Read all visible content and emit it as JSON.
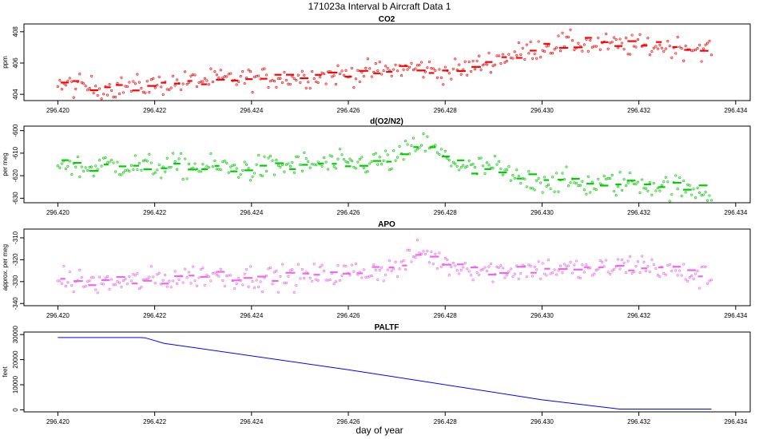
{
  "figure": {
    "title": "171023a   Interval b Aircraft Data 1",
    "xlabel": "day of year"
  },
  "chart_data": [
    {
      "type": "scatter",
      "title": "CO2",
      "ylabel": "ppm",
      "color": "#ff0000",
      "xlim": [
        296.4193,
        296.4343
      ],
      "ylim": [
        403.6,
        408.5
      ],
      "xticks": [
        "296.420",
        "296.422",
        "296.424",
        "296.426",
        "296.428",
        "296.430",
        "296.432",
        "296.434"
      ],
      "yticks": [
        "404",
        "406",
        "408"
      ],
      "trend_x": [
        296.42,
        296.421,
        296.422,
        296.423,
        296.424,
        296.425,
        296.426,
        296.427,
        296.4275,
        296.428,
        296.4285,
        296.429,
        296.4295,
        296.43,
        296.4305,
        296.431,
        296.432,
        296.433,
        296.4335
      ],
      "trend_y": [
        404.6,
        404.4,
        404.6,
        404.9,
        405.0,
        405.1,
        405.3,
        405.6,
        405.7,
        405.4,
        405.7,
        406.2,
        406.6,
        407.0,
        407.3,
        407.2,
        407.1,
        407.0,
        406.9
      ],
      "noise": 0.35
    },
    {
      "type": "scatter",
      "title": "d(O2/N2)",
      "ylabel": "per meg",
      "color": "#00cc00",
      "xlim": [
        296.4193,
        296.4343
      ],
      "ylim": [
        -632,
        -598
      ],
      "xticks": [
        "296.420",
        "296.422",
        "296.424",
        "296.426",
        "296.428",
        "296.430",
        "296.432",
        "296.434"
      ],
      "yticks": [
        "-630",
        "-620",
        "-610",
        "-600"
      ],
      "trend_x": [
        296.42,
        296.4205,
        296.421,
        296.422,
        296.423,
        296.424,
        296.425,
        296.426,
        296.427,
        296.4275,
        296.428,
        296.4285,
        296.429,
        296.4295,
        296.43,
        296.431,
        296.432,
        296.433,
        296.4335
      ],
      "trend_y": [
        -613,
        -617,
        -615,
        -616,
        -616,
        -617,
        -615,
        -615,
        -613,
        -605,
        -612,
        -617,
        -616,
        -622,
        -622,
        -624,
        -623,
        -626,
        -627
      ],
      "noise": 2.8
    },
    {
      "type": "scatter",
      "title": "APO",
      "ylabel": "approx. per meg",
      "color": "#ee66ee",
      "xlim": [
        296.4193,
        296.4343
      ],
      "ylim": [
        -341,
        -306
      ],
      "xticks": [
        "296.420",
        "296.422",
        "296.424",
        "296.426",
        "296.428",
        "296.430",
        "296.432",
        "296.434"
      ],
      "yticks": [
        "-340",
        "-330",
        "-320",
        "-310"
      ],
      "trend_x": [
        296.42,
        296.421,
        296.422,
        296.423,
        296.424,
        296.425,
        296.426,
        296.427,
        296.4275,
        296.428,
        296.429,
        296.43,
        296.431,
        296.432,
        296.433,
        296.4335
      ],
      "trend_y": [
        -329,
        -331,
        -329,
        -327,
        -328,
        -328,
        -326,
        -324,
        -316,
        -322,
        -325,
        -324,
        -325,
        -322,
        -327,
        -328
      ],
      "noise": 2.8
    },
    {
      "type": "line",
      "title": "PALTF",
      "ylabel": "feet",
      "color": "#0000ff",
      "xlim": [
        296.4193,
        296.4343
      ],
      "ylim": [
        -800,
        31000
      ],
      "xticks": [
        "296.420",
        "296.422",
        "296.424",
        "296.426",
        "296.428",
        "296.430",
        "296.432",
        "296.434"
      ],
      "yticks": [
        "0",
        "10000",
        "20000",
        "30000"
      ],
      "x": [
        296.42,
        296.4217,
        296.4218,
        296.4222,
        296.426,
        296.43,
        296.4316,
        296.4335
      ],
      "y": [
        28800,
        28800,
        28700,
        26500,
        16000,
        4000,
        300,
        300
      ]
    }
  ]
}
